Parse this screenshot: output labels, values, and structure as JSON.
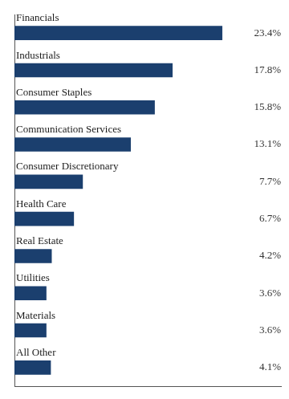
{
  "chart_data": {
    "type": "bar",
    "orientation": "horizontal",
    "categories": [
      "Financials",
      "Industrials",
      "Consumer Staples",
      "Communication Services",
      "Consumer Discretionary",
      "Health Care",
      "Real Estate",
      "Utilities",
      "Materials",
      "All Other"
    ],
    "values": [
      23.4,
      17.8,
      15.8,
      13.1,
      7.7,
      6.7,
      4.2,
      3.6,
      3.6,
      4.1
    ],
    "value_labels": [
      "23.4%",
      "17.8%",
      "15.8%",
      "13.1%",
      "7.7%",
      "6.7%",
      "4.2%",
      "3.6%",
      "3.6%",
      "4.1%"
    ],
    "color": "#1b3f6e",
    "xlim": [
      0,
      30
    ],
    "grid": false,
    "tick_labels": false,
    "data_labels": true
  }
}
